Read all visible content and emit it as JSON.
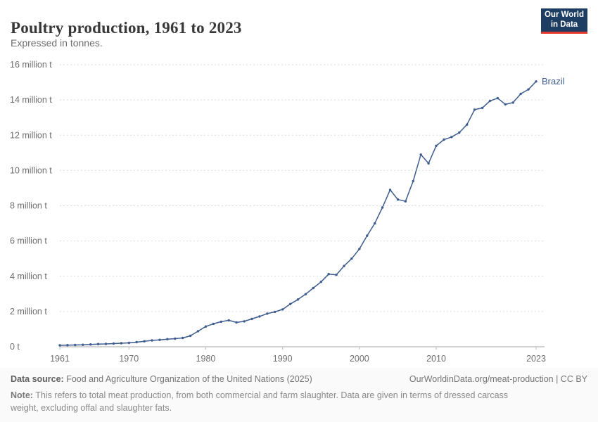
{
  "header": {
    "title": "Poultry production, 1961 to 2023",
    "subtitle": "Expressed in tonnes.",
    "logo": {
      "line1": "Our World",
      "line2": "in Data",
      "bg_color": "#1d3d63",
      "accent_color": "#e5372c"
    }
  },
  "chart_data": {
    "type": "line",
    "title": "Poultry production, 1961 to 2023",
    "xlabel": "",
    "ylabel": "",
    "xlim": [
      1961,
      2023
    ],
    "ylim": [
      0,
      16
    ],
    "grid": "horizontal-dashed",
    "legend_position": "end-of-line",
    "x": [
      1961,
      1962,
      1963,
      1964,
      1965,
      1966,
      1967,
      1968,
      1969,
      1970,
      1971,
      1972,
      1973,
      1974,
      1975,
      1976,
      1977,
      1978,
      1979,
      1980,
      1981,
      1982,
      1983,
      1984,
      1985,
      1986,
      1987,
      1988,
      1989,
      1990,
      1991,
      1992,
      1993,
      1994,
      1995,
      1996,
      1997,
      1998,
      1999,
      2000,
      2001,
      2002,
      2003,
      2004,
      2005,
      2006,
      2007,
      2008,
      2009,
      2010,
      2011,
      2012,
      2013,
      2014,
      2015,
      2016,
      2017,
      2018,
      2019,
      2020,
      2021,
      2022,
      2023
    ],
    "series": [
      {
        "name": "Brazil",
        "color": "#3e5c8f",
        "unit": "million t",
        "values": [
          0.08,
          0.09,
          0.1,
          0.11,
          0.13,
          0.15,
          0.16,
          0.18,
          0.2,
          0.22,
          0.26,
          0.31,
          0.36,
          0.39,
          0.43,
          0.46,
          0.5,
          0.62,
          0.88,
          1.15,
          1.3,
          1.42,
          1.5,
          1.38,
          1.44,
          1.58,
          1.72,
          1.88,
          1.98,
          2.12,
          2.42,
          2.68,
          2.98,
          3.33,
          3.68,
          4.12,
          4.08,
          4.58,
          5.0,
          5.55,
          6.3,
          7.0,
          7.9,
          8.9,
          8.35,
          8.25,
          9.4,
          10.9,
          10.4,
          11.4,
          11.75,
          11.9,
          12.15,
          12.6,
          13.45,
          13.55,
          13.95,
          14.1,
          13.75,
          13.85,
          14.35,
          14.6,
          15.05
        ]
      }
    ],
    "yticks": {
      "values": [
        0,
        2,
        4,
        6,
        8,
        10,
        12,
        14,
        16
      ],
      "labels": [
        "0 t",
        "2 million t",
        "4 million t",
        "6 million t",
        "8 million t",
        "10 million t",
        "12 million t",
        "14 million t",
        "16 million t"
      ]
    },
    "xticks": {
      "values": [
        1961,
        1970,
        1980,
        1990,
        2000,
        2010,
        2023
      ],
      "labels": [
        "1961",
        "1970",
        "1980",
        "1990",
        "2000",
        "2010",
        "2023"
      ]
    }
  },
  "footer": {
    "datasource_label": "Data source:",
    "datasource_value": "Food and Agriculture Organization of the United Nations (2025)",
    "license": "OurWorldinData.org/meat-production | CC BY",
    "note_label": "Note:",
    "note_value": "This refers to total meat production, from both commercial and farm slaughter. Data are given in terms of dressed carcass weight, excluding offal and slaughter fats."
  }
}
